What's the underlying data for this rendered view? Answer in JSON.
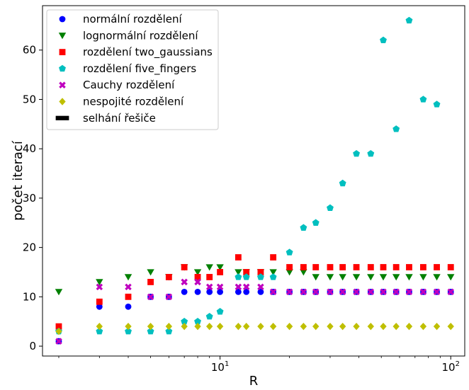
{
  "chart_data": {
    "type": "scatter",
    "xlabel": "R",
    "ylabel": "počet iterací",
    "xscale": "log",
    "xlim": [
      1.7,
      115
    ],
    "ylim": [
      -2,
      69
    ],
    "x_ticks": [
      {
        "value": 10,
        "base": "10",
        "exp": "1"
      },
      {
        "value": 100,
        "base": "10",
        "exp": "2"
      }
    ],
    "y_ticks": [
      0,
      10,
      20,
      30,
      40,
      50,
      60
    ],
    "grid": false,
    "legend_position": "top-left",
    "legend": [
      {
        "label": "normální rozdělení",
        "color": "#0000ff",
        "marker": "circle"
      },
      {
        "label": "lognormální rozdělení",
        "color": "#008000",
        "marker": "triangle-down"
      },
      {
        "label": "rozdělení two_gaussians",
        "color": "#ff0000",
        "marker": "square"
      },
      {
        "label": "rozdělení five_fingers",
        "color": "#00bfbf",
        "marker": "pentagon"
      },
      {
        "label": "Cauchy rozdělení",
        "color": "#bf00bf",
        "marker": "x"
      },
      {
        "label": "nespojité rozdělení",
        "color": "#bfbf00",
        "marker": "diamond"
      },
      {
        "label": "selhání řešiče",
        "color": "#000000",
        "marker": "bar"
      }
    ],
    "series": [
      {
        "name": "normální rozdělení",
        "color": "#0000ff",
        "marker": "circle",
        "x": [
          2,
          3,
          4,
          5,
          6,
          7,
          8,
          9,
          10,
          12,
          13,
          15,
          17,
          20,
          23,
          26,
          30,
          34,
          39,
          45,
          51,
          58,
          66,
          76,
          87,
          100
        ],
        "y": [
          1,
          8,
          8,
          10,
          10,
          11,
          11,
          11,
          11,
          11,
          11,
          11,
          11,
          11,
          11,
          11,
          11,
          11,
          11,
          11,
          11,
          11,
          11,
          11,
          11,
          11
        ]
      },
      {
        "name": "lognormální rozdělení",
        "color": "#008000",
        "marker": "triangle-down",
        "x": [
          2,
          3,
          4,
          5,
          6,
          7,
          8,
          9,
          10,
          12,
          13,
          15,
          17,
          20,
          23,
          26,
          30,
          34,
          39,
          45,
          51,
          58,
          66,
          76,
          87,
          100
        ],
        "y": [
          11,
          13,
          14,
          15,
          14,
          16,
          15,
          16,
          16,
          15,
          15,
          15,
          15,
          15,
          15,
          14,
          14,
          14,
          14,
          14,
          14,
          14,
          14,
          14,
          14,
          14
        ]
      },
      {
        "name": "rozdělení two_gaussians",
        "color": "#ff0000",
        "marker": "square",
        "x": [
          2,
          3,
          4,
          5,
          6,
          7,
          8,
          9,
          10,
          12,
          13,
          15,
          17,
          20,
          23,
          26,
          30,
          34,
          39,
          45,
          51,
          58,
          66,
          76,
          87,
          100
        ],
        "y": [
          4,
          9,
          10,
          13,
          14,
          16,
          14,
          14,
          15,
          18,
          15,
          15,
          18,
          16,
          16,
          16,
          16,
          16,
          16,
          16,
          16,
          16,
          16,
          16,
          16,
          16
        ]
      },
      {
        "name": "rozdělení five_fingers",
        "color": "#00bfbf",
        "marker": "pentagon",
        "x": [
          2,
          3,
          4,
          5,
          6,
          7,
          8,
          9,
          10,
          12,
          13,
          15,
          17,
          20,
          23,
          26,
          30,
          34,
          39,
          45,
          51,
          58,
          66,
          76,
          87
        ],
        "y": [
          3,
          3,
          3,
          3,
          3,
          5,
          5,
          6,
          7,
          14,
          14,
          14,
          14,
          19,
          24,
          25,
          28,
          33,
          39,
          39,
          62,
          44,
          66,
          50,
          49
        ]
      },
      {
        "name": "Cauchy rozdělení",
        "color": "#bf00bf",
        "marker": "x",
        "x": [
          2,
          3,
          4,
          5,
          6,
          7,
          8,
          9,
          10,
          12,
          13,
          15,
          17,
          20,
          23,
          26,
          30,
          34,
          39,
          45,
          51,
          58,
          66,
          76,
          87,
          100
        ],
        "y": [
          1,
          12,
          12,
          10,
          10,
          13,
          13,
          12,
          12,
          12,
          12,
          12,
          11,
          11,
          11,
          11,
          11,
          11,
          11,
          11,
          11,
          11,
          11,
          11,
          11,
          11
        ]
      },
      {
        "name": "nespojité rozdělení",
        "color": "#bfbf00",
        "marker": "diamond",
        "x": [
          2,
          3,
          4,
          5,
          6,
          7,
          8,
          9,
          10,
          12,
          13,
          15,
          17,
          20,
          23,
          26,
          30,
          34,
          39,
          45,
          51,
          58,
          66,
          76,
          87,
          100
        ],
        "y": [
          3,
          4,
          4,
          4,
          4,
          4,
          4,
          4,
          4,
          4,
          4,
          4,
          4,
          4,
          4,
          4,
          4,
          4,
          4,
          4,
          4,
          4,
          4,
          4,
          4,
          4
        ]
      }
    ]
  }
}
